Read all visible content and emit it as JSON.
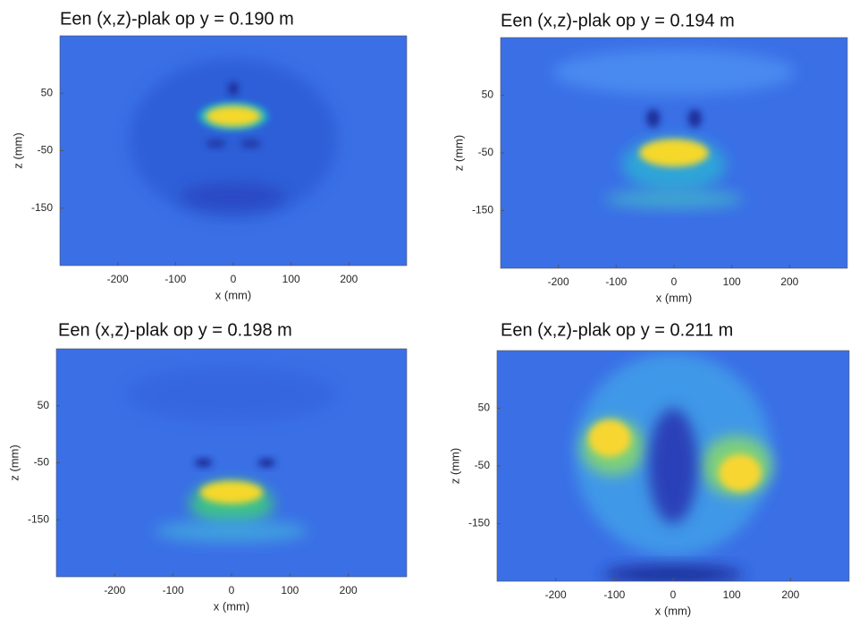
{
  "chart_data": [
    {
      "type": "heatmap",
      "title": "Een (x,z)-plak op y = 0.190 m",
      "xlabel": "x (mm)",
      "ylabel": "z (mm)",
      "xlim": [
        -300,
        300
      ],
      "ylim": [
        -250,
        150
      ],
      "xticks": [
        -200,
        -100,
        0,
        100,
        200
      ],
      "yticks": [
        50,
        -50,
        -150
      ]
    },
    {
      "type": "heatmap",
      "title": "Een (x,z)-plak op y = 0.194 m",
      "xlabel": "x (mm)",
      "ylabel": "z (mm)",
      "xlim": [
        -300,
        300
      ],
      "ylim": [
        -250,
        150
      ],
      "xticks": [
        -200,
        -100,
        0,
        100,
        200
      ],
      "yticks": [
        50,
        -50,
        -150
      ]
    },
    {
      "type": "heatmap",
      "title": "Een (x,z)-plak op y = 0.198 m",
      "xlabel": "x (mm)",
      "ylabel": "z (mm)",
      "xlim": [
        -300,
        300
      ],
      "ylim": [
        -250,
        150
      ],
      "xticks": [
        -200,
        -100,
        0,
        100,
        200
      ],
      "yticks": [
        50,
        -50,
        -150
      ]
    },
    {
      "type": "heatmap",
      "title": "Een (x,z)-plak op y = 0.211 m",
      "xlabel": "x (mm)",
      "ylabel": "z (mm)",
      "xlim": [
        -300,
        300
      ],
      "ylim": [
        -250,
        150
      ],
      "xticks": [
        -200,
        -100,
        0,
        100,
        200
      ],
      "yticks": [
        50,
        -50,
        -150
      ]
    }
  ]
}
